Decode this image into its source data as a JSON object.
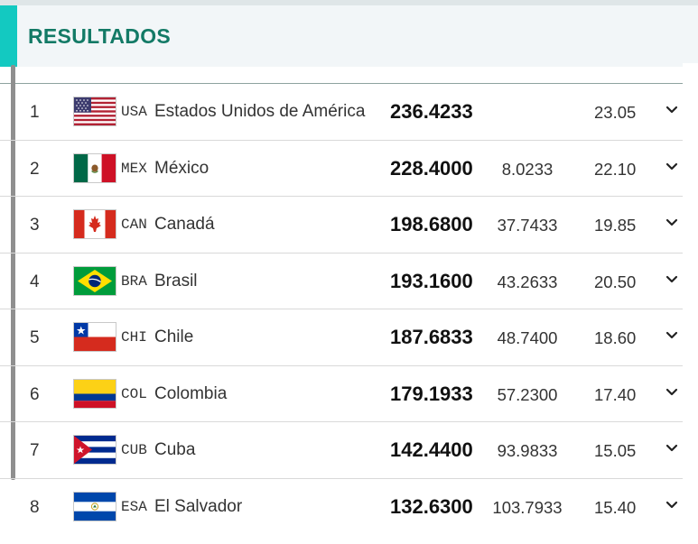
{
  "header": {
    "title": "RESULTADOS",
    "accent_color": "#13c9c1",
    "title_color": "#137a66"
  },
  "rows": [
    {
      "rank": "1",
      "flag": "usa-flag",
      "code": "USA",
      "name": "Estados Unidos de América",
      "total": "236.4233",
      "diff": "",
      "score": "23.05"
    },
    {
      "rank": "2",
      "flag": "mexico-flag",
      "code": "MEX",
      "name": "México",
      "total": "228.4000",
      "diff": "8.0233",
      "score": "22.10"
    },
    {
      "rank": "3",
      "flag": "canada-flag",
      "code": "CAN",
      "name": "Canadá",
      "total": "198.6800",
      "diff": "37.7433",
      "score": "19.85"
    },
    {
      "rank": "4",
      "flag": "brazil-flag",
      "code": "BRA",
      "name": "Brasil",
      "total": "193.1600",
      "diff": "43.2633",
      "score": "20.50"
    },
    {
      "rank": "5",
      "flag": "chile-flag",
      "code": "CHI",
      "name": "Chile",
      "total": "187.6833",
      "diff": "48.7400",
      "score": "18.60"
    },
    {
      "rank": "6",
      "flag": "colombia-flag",
      "code": "COL",
      "name": "Colombia",
      "total": "179.1933",
      "diff": "57.2300",
      "score": "17.40"
    },
    {
      "rank": "7",
      "flag": "cuba-flag",
      "code": "CUB",
      "name": "Cuba",
      "total": "142.4400",
      "diff": "93.9833",
      "score": "15.05"
    },
    {
      "rank": "8",
      "flag": "el-salvador-flag",
      "code": "ESA",
      "name": "El Salvador",
      "total": "132.6300",
      "diff": "103.7933",
      "score": "15.40"
    }
  ]
}
